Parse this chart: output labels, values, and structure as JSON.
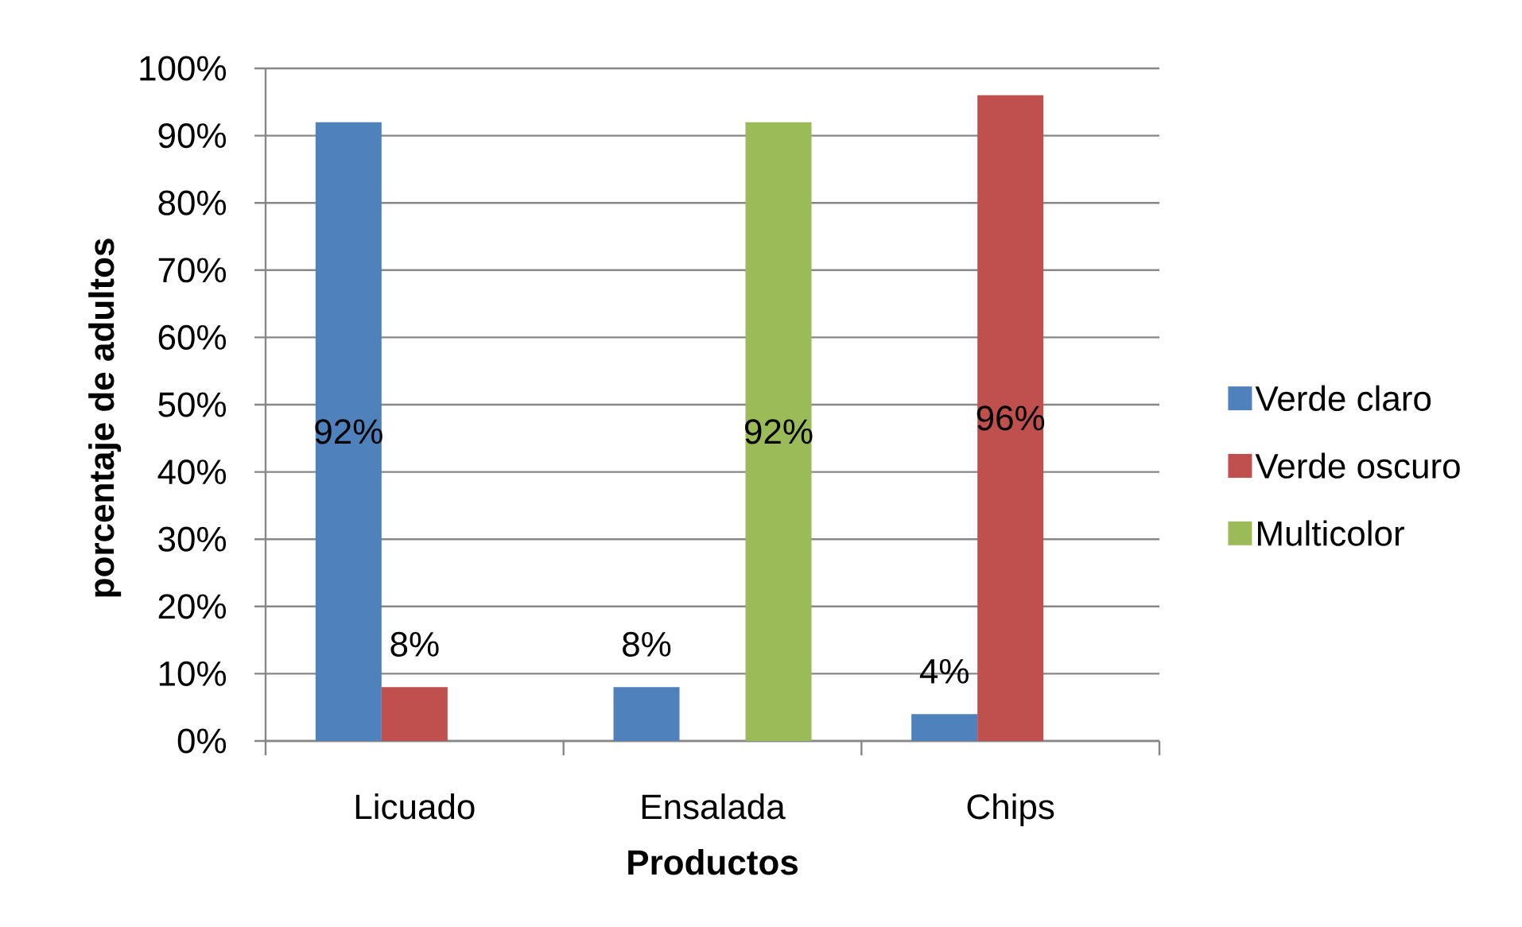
{
  "chart_data": {
    "type": "bar",
    "xlabel": "Productos",
    "ylabel": "porcentaje de adultos",
    "categories": [
      "Licuado",
      "Ensalada",
      "Chips"
    ],
    "series": [
      {
        "name": "Verde claro",
        "color": "#4f81bd",
        "values": [
          92,
          8,
          4
        ],
        "value_labels": [
          "92%",
          "8%",
          "4%"
        ]
      },
      {
        "name": "Verde oscuro",
        "color": "#c0504d",
        "values": [
          8,
          null,
          96
        ],
        "value_labels": [
          "8%",
          null,
          "96%"
        ]
      },
      {
        "name": "Multicolor",
        "color": "#9bbb59",
        "values": [
          null,
          92,
          null
        ],
        "value_labels": [
          null,
          "92%",
          null
        ]
      }
    ],
    "ylim": [
      0,
      100
    ],
    "yticks": [
      {
        "value": 0,
        "label": "0%"
      },
      {
        "value": 10,
        "label": "10%"
      },
      {
        "value": 20,
        "label": "20%"
      },
      {
        "value": 30,
        "label": "30%"
      },
      {
        "value": 40,
        "label": "40%"
      },
      {
        "value": 50,
        "label": "50%"
      },
      {
        "value": 60,
        "label": "60%"
      },
      {
        "value": 70,
        "label": "70%"
      },
      {
        "value": 80,
        "label": "80%"
      },
      {
        "value": 90,
        "label": "90%"
      },
      {
        "value": 100,
        "label": "100%"
      }
    ],
    "grid": "y",
    "legend": "right"
  }
}
